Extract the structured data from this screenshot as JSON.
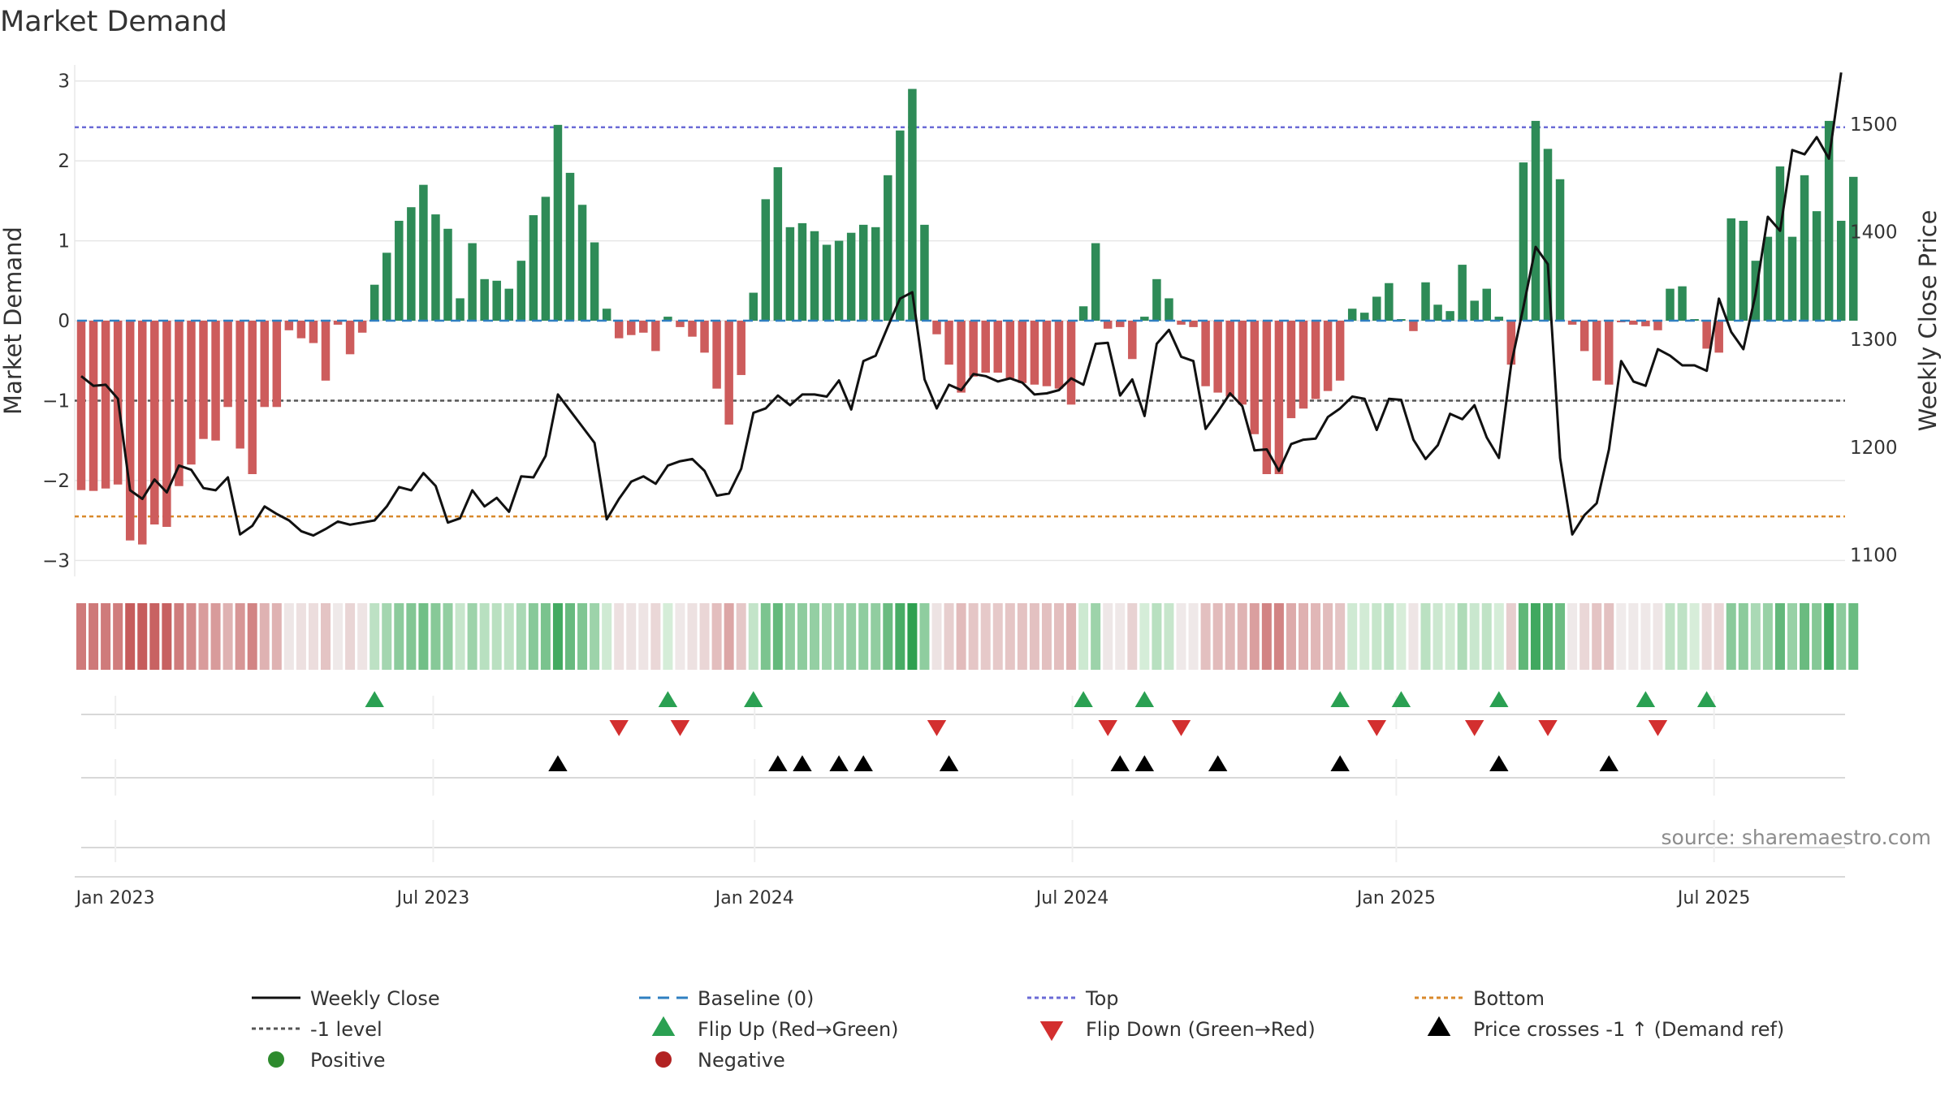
{
  "chart_data": {
    "type": "bar+line",
    "title": "Market Demand",
    "ylabel_left": "Market Demand",
    "ylabel_right": "Weekly Close Price",
    "source": "source: sharemaestro.com",
    "ylim_left": [
      -3.2,
      3.2
    ],
    "ylim_right": [
      1080,
      1555
    ],
    "left_ticks": [
      "3",
      "2",
      "1",
      "0",
      "−1",
      "−2",
      "−3"
    ],
    "left_tick_values": [
      3,
      2,
      1,
      0,
      -1,
      -2,
      -3
    ],
    "right_ticks": [
      "1500",
      "1400",
      "1300",
      "1200",
      "1100"
    ],
    "right_tick_values": [
      1500,
      1400,
      1300,
      1200,
      1100
    ],
    "x_ticks": [
      "Jan 2023",
      "Jul 2023",
      "Jan 2024",
      "Jul 2024",
      "Jan 2025",
      "Jul 2025"
    ],
    "x_tick_weeks": [
      2.8,
      28.8,
      55.1,
      81.1,
      107.6,
      133.6
    ],
    "num_weeks": 145,
    "reference_lines": {
      "top": 2.42,
      "bottom": -2.45,
      "minus_one": -1
    },
    "demand": [
      -2.12,
      -2.13,
      -2.1,
      -2.05,
      -2.75,
      -2.8,
      -2.55,
      -2.58,
      -2.07,
      -1.8,
      -1.48,
      -1.5,
      -1.08,
      -1.6,
      -1.92,
      -1.08,
      -1.08,
      -0.12,
      -0.22,
      -0.28,
      -0.75,
      -0.05,
      -0.42,
      -0.15,
      0.45,
      0.85,
      1.25,
      1.42,
      1.7,
      1.33,
      1.15,
      0.28,
      0.97,
      0.52,
      0.5,
      0.4,
      0.75,
      1.32,
      1.55,
      2.45,
      1.85,
      1.45,
      0.98,
      0.15,
      -0.22,
      -0.18,
      -0.15,
      -0.38,
      0.05,
      -0.08,
      -0.2,
      -0.4,
      -0.85,
      -1.3,
      -0.68,
      0.35,
      1.52,
      1.92,
      1.17,
      1.22,
      1.12,
      0.95,
      1.0,
      1.1,
      1.2,
      1.17,
      1.82,
      2.38,
      2.9,
      1.2,
      -0.17,
      -0.55,
      -0.9,
      -0.7,
      -0.65,
      -0.65,
      -0.72,
      -0.78,
      -0.8,
      -0.82,
      -0.85,
      -1.05,
      0.18,
      0.97,
      -0.1,
      -0.08,
      -0.48,
      0.05,
      0.52,
      0.28,
      -0.05,
      -0.08,
      -0.82,
      -0.9,
      -0.95,
      -1.05,
      -1.42,
      -1.92,
      -1.92,
      -1.22,
      -1.1,
      -0.98,
      -0.88,
      -0.75,
      0.15,
      0.1,
      0.3,
      0.47,
      0.02,
      -0.13,
      0.48,
      0.2,
      0.12,
      0.7,
      0.25,
      0.4,
      0.05,
      -0.55,
      1.98,
      2.5,
      2.15,
      1.77,
      -0.05,
      -0.38,
      -0.75,
      -0.8,
      -0.02,
      -0.05,
      -0.07,
      -0.12,
      0.4,
      0.43,
      0.02,
      -0.35,
      -0.4,
      1.28,
      1.25,
      0.75,
      1.05,
      1.93,
      1.05,
      1.82,
      1.37,
      2.5,
      1.25,
      1.8
    ],
    "price": [
      1266,
      1257,
      1258,
      1245,
      1160,
      1152,
      1170,
      1158,
      1183,
      1179,
      1162,
      1160,
      1172,
      1119,
      1127,
      1145,
      1138,
      1132,
      1122,
      1118,
      1124,
      1131,
      1128,
      1130,
      1132,
      1145,
      1163,
      1160,
      1176,
      1164,
      1130,
      1134,
      1160,
      1145,
      1153,
      1140,
      1173,
      1172,
      1192,
      1249,
      1234,
      1219,
      1204,
      1133,
      1152,
      1168,
      1173,
      1166,
      1183,
      1187,
      1189,
      1178,
      1155,
      1157,
      1180,
      1232,
      1236,
      1248,
      1239,
      1249,
      1249,
      1247,
      1262,
      1235,
      1280,
      1285,
      1312,
      1338,
      1344,
      1263,
      1236,
      1258,
      1253,
      1268,
      1266,
      1261,
      1264,
      1260,
      1249,
      1250,
      1253,
      1264,
      1258,
      1296,
      1297,
      1248,
      1263,
      1229,
      1296,
      1309,
      1284,
      1280,
      1217,
      1233,
      1250,
      1238,
      1197,
      1198,
      1178,
      1203,
      1207,
      1208,
      1228,
      1236,
      1247,
      1245,
      1216,
      1245,
      1244,
      1207,
      1189,
      1202,
      1231,
      1226,
      1239,
      1209,
      1190,
      1277,
      1330,
      1386,
      1370,
      1190,
      1119,
      1137,
      1148,
      1198,
      1280,
      1261,
      1257,
      1291,
      1285,
      1276,
      1276,
      1271,
      1338,
      1307,
      1291,
      1342,
      1414,
      1401,
      1476,
      1472,
      1488,
      1468,
      1548
    ],
    "signals": {
      "flip_up_weeks": [
        24,
        48,
        55,
        82,
        87,
        103,
        108,
        116,
        128,
        133
      ],
      "flip_down_weeks": [
        44,
        49,
        70,
        84,
        90,
        106,
        114,
        120,
        129
      ],
      "cross_weeks": [
        39,
        57,
        59,
        62,
        64,
        71,
        85,
        87,
        93,
        103,
        116,
        125
      ]
    }
  },
  "legend": [
    {
      "label": "Weekly Close",
      "symbol": "solid-line",
      "color": "#111111"
    },
    {
      "label": "Baseline (0)",
      "symbol": "dashed-line",
      "color": "#2f7fc1"
    },
    {
      "label": "Top",
      "symbol": "dotted-line",
      "color": "#6b6bd6"
    },
    {
      "label": "Bottom",
      "symbol": "dotted-line",
      "color": "#d9892b"
    },
    {
      "label": "-1 level",
      "symbol": "dotted-line",
      "color": "#555555"
    },
    {
      "label": "Flip Up (Red→Green)",
      "symbol": "triangle-up",
      "color": "#2aa052"
    },
    {
      "label": "Flip Down (Green→Red)",
      "symbol": "triangle-down",
      "color": "#d32f2f"
    },
    {
      "label": "Price crosses -1 ↑ (Demand ref)",
      "symbol": "triangle-up",
      "color": "#000000"
    },
    {
      "label": "Positive",
      "symbol": "circle",
      "color": "#2e8b2e"
    },
    {
      "label": "Negative",
      "symbol": "circle",
      "color": "#b22222"
    }
  ],
  "colors": {
    "positive_bar": "#2e8b57",
    "negative_bar": "#cd5c5c",
    "price_line": "#111111",
    "grid": "#e6e6e6"
  }
}
